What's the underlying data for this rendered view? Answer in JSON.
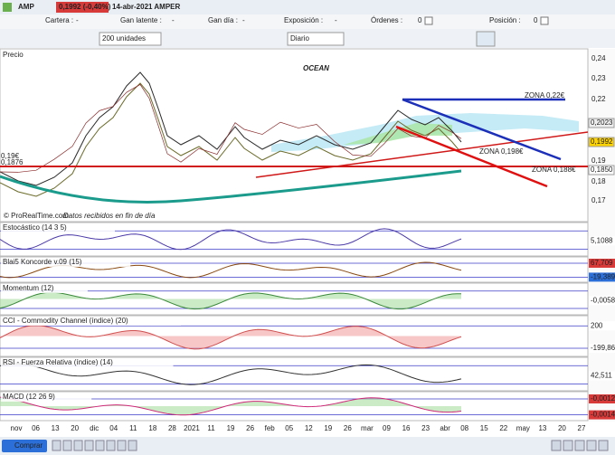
{
  "header": {
    "symbol": "AMP",
    "price": "0,1992 (-0,40%)",
    "date_name": "14-abr-2021 AMPER"
  },
  "account": [
    {
      "label": "Cartera :",
      "value": "-"
    },
    {
      "label": "Gan latente :",
      "value": "-"
    },
    {
      "label": "Gan día :",
      "value": "-"
    },
    {
      "label": "Exposición :",
      "value": "-"
    },
    {
      "label": "Órdenes :",
      "value": "0"
    },
    {
      "label": "Posición :",
      "value": "0"
    }
  ],
  "controls": {
    "quantity": "200 unidades",
    "period": "Diario"
  },
  "price_panel": {
    "title": "Precio",
    "annotation": "OCEAN",
    "zones": [
      "ZONA 0,22€",
      "ZONA 0,198€",
      "ZONA 0,188€"
    ],
    "left_labels": [
      "0,19€",
      "0,1876"
    ],
    "axis": [
      "0,24",
      "0,23",
      "0,22",
      "0,19",
      "0,18",
      "0,17"
    ],
    "markers": [
      "0,2023",
      "0,1992",
      "0,1850"
    ],
    "credit": "© ProRealTime.com",
    "note": "Datos recibidos en fin de día"
  },
  "indicators": [
    {
      "title": "Estocástico (14 3 5)",
      "labels": [
        "5,1088"
      ]
    },
    {
      "title": "Blai5 Koncorde v.09 (15)",
      "labels": [
        "67,709",
        "-19,389"
      ]
    },
    {
      "title": "Momentum (12)",
      "labels": [
        "-0,0058"
      ]
    },
    {
      "title": "CCI - Commodity Channel (índice) (20)",
      "labels": [
        "200",
        "-199,86"
      ]
    },
    {
      "title": "RSI - Fuerza Relativa (índice) (14)",
      "labels": [
        "42,511"
      ]
    },
    {
      "title": "MACD (12 26 9)",
      "labels": [
        "-0,0012",
        "-0,0014"
      ]
    }
  ],
  "x_axis": [
    "nov",
    "06",
    "13",
    "20",
    "dic",
    "04",
    "11",
    "18",
    "28",
    "2021",
    "11",
    "19",
    "26",
    "feb",
    "05",
    "12",
    "19",
    "26",
    "mar",
    "09",
    "16",
    "23",
    "abr",
    "08",
    "15",
    "22",
    "may",
    "13",
    "20",
    "27"
  ],
  "buy_button": "Comprar"
}
